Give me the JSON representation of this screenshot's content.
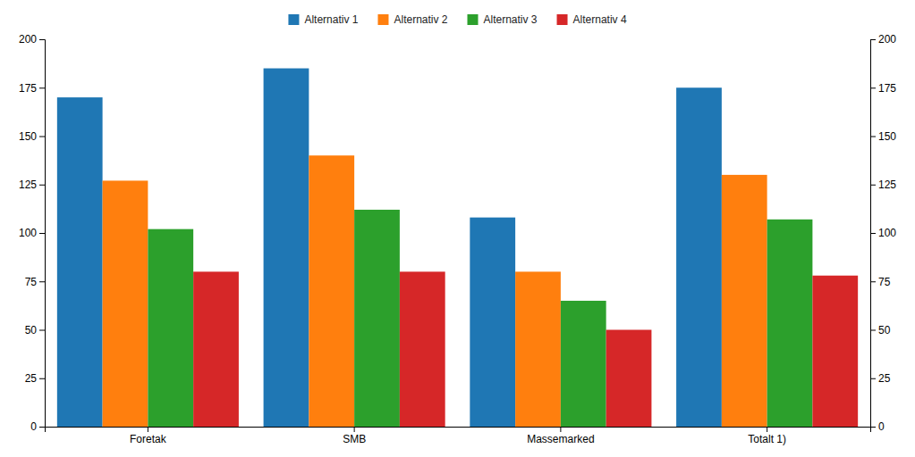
{
  "chart_data": {
    "type": "bar",
    "categories": [
      "Foretak",
      "SMB",
      "Massemarked",
      "Totalt 1)"
    ],
    "series": [
      {
        "name": "Alternativ 1",
        "values": [
          170,
          185,
          108,
          175
        ]
      },
      {
        "name": "Alternativ 2",
        "values": [
          127,
          140,
          80,
          130
        ]
      },
      {
        "name": "Alternativ 3",
        "values": [
          102,
          112,
          65,
          107
        ]
      },
      {
        "name": "Alternativ 4",
        "values": [
          80,
          80,
          50,
          78
        ]
      }
    ],
    "ylim": [
      0,
      200
    ],
    "yticks": [
      0,
      25,
      50,
      75,
      100,
      125,
      150,
      175,
      200
    ],
    "y2lim": [
      0,
      200
    ],
    "y2ticks": [
      0,
      25,
      50,
      75,
      100,
      125,
      150,
      175,
      200
    ],
    "grid": false,
    "legend": "top"
  }
}
